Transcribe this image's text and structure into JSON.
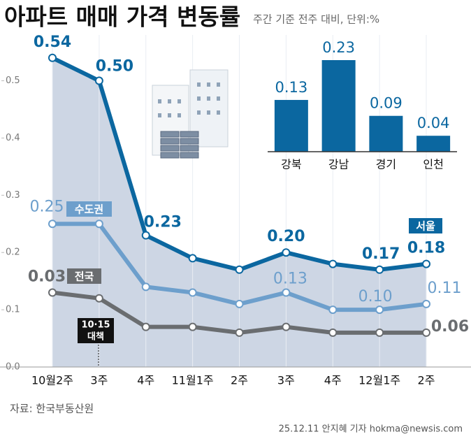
{
  "chart_data": [
    {
      "type": "line",
      "title": "아파트 매매 가격 변동률",
      "subtitle": "주간 기준 전주 대비, 단위:%",
      "categories": [
        "10월2주",
        "3주",
        "4주",
        "11월1주",
        "2주",
        "3주",
        "4주",
        "12월1주",
        "2주"
      ],
      "series": [
        {
          "name": "서울",
          "color": "#0b67a0",
          "values": [
            0.54,
            0.5,
            0.23,
            0.19,
            0.17,
            0.2,
            0.18,
            0.17,
            0.18
          ],
          "value_labels": [
            "0.54",
            "0.50",
            "0.23",
            null,
            null,
            "0.20",
            null,
            "0.17",
            "0.18"
          ]
        },
        {
          "name": "수도권",
          "color": "#6d9fcc",
          "values": [
            0.25,
            0.25,
            0.14,
            0.13,
            0.11,
            0.13,
            0.1,
            0.1,
            0.11
          ],
          "value_labels": [
            "0.25",
            null,
            null,
            null,
            null,
            "0.13",
            null,
            "0.10",
            "0.11"
          ]
        },
        {
          "name": "전국",
          "color": "#6a6d70",
          "values": [
            0.13,
            0.12,
            0.07,
            0.07,
            0.06,
            0.07,
            0.06,
            0.06,
            0.06
          ],
          "value_labels": [
            null,
            null,
            null,
            null,
            null,
            null,
            null,
            null,
            "0.06"
          ]
        }
      ],
      "annotations": [
        "0.03",
        "10·15",
        "대책"
      ],
      "ylim": [
        0,
        0.58
      ],
      "yticks": [
        {
          "value": 0,
          "label": "0.0"
        },
        0.1,
        0.2,
        0.3,
        0.4,
        0.5
      ],
      "source": "자료: 한국부동산원",
      "credit": "25.12.11 안지혜 기자 hokma@newsis.com"
    },
    {
      "type": "bar",
      "categories": [
        "강북",
        "강남",
        "경기",
        "인천"
      ],
      "values": [
        0.13,
        0.23,
        0.09,
        0.04
      ],
      "color": "#0b67a0"
    }
  ]
}
